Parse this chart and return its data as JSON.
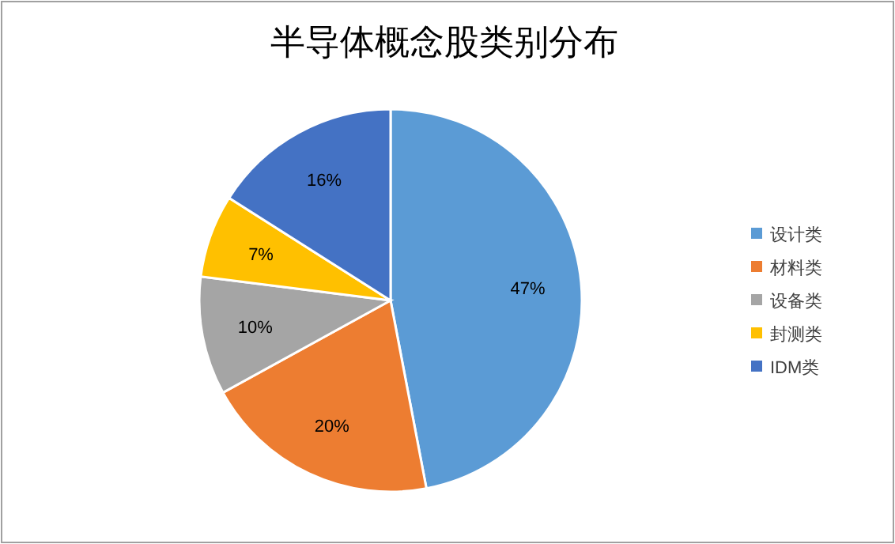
{
  "chart_data": {
    "type": "pie",
    "title": "半导体概念股类别分布",
    "categories": [
      "设计类",
      "材料类",
      "设备类",
      "封测类",
      "IDM类"
    ],
    "values": [
      47,
      20,
      10,
      7,
      16
    ],
    "colors": [
      "#5b9bd5",
      "#ed7d31",
      "#a5a5a5",
      "#ffc000",
      "#4472c4"
    ],
    "value_labels": [
      "47%",
      "20%",
      "10%",
      "7%",
      "16%"
    ],
    "legend": "right"
  }
}
